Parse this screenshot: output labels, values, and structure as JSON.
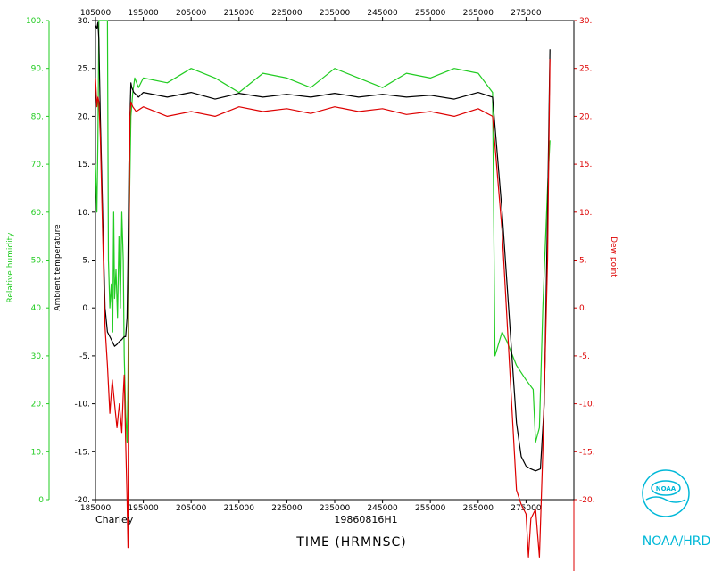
{
  "chart_data": {
    "type": "line",
    "storm_name": "Charley",
    "flight_id": "19860816H1",
    "xlabel": "TIME (HRMNSC)",
    "x_ticks": [
      "185000",
      "195000",
      "205000",
      "215000",
      "225000",
      "235000",
      "245000",
      "255000",
      "265000",
      "275000"
    ],
    "left_axis_1": {
      "label": "Relative humidity",
      "ticks": [
        "0",
        "10.",
        "20.",
        "30.",
        "40.",
        "50.",
        "60.",
        "70.",
        "80.",
        "90.",
        "100."
      ],
      "ylim": [
        0,
        100
      ],
      "color": "#22cc22"
    },
    "left_axis_2": {
      "label": "Ambient temperature",
      "ticks": [
        "-20.",
        "-15.",
        "-10.",
        "-5.",
        "0.",
        "5.",
        "10.",
        "15.",
        "20.",
        "25.",
        "30."
      ],
      "ylim": [
        -20,
        30
      ],
      "color": "#000000"
    },
    "right_axis": {
      "label": "Dew point",
      "ticks": [
        "-20.",
        "-15.",
        "-10.",
        "-5.",
        "0.",
        "5.",
        "10.",
        "15.",
        "20.",
        "25.",
        "30."
      ],
      "ylim": [
        -20,
        30
      ],
      "color": "#dd0000"
    },
    "series": [
      {
        "name": "Relative humidity",
        "axis": "left_axis_1",
        "color": "#22cc22",
        "points": [
          [
            0.0,
            70
          ],
          [
            0.03,
            60
          ],
          [
            0.05,
            75
          ],
          [
            0.07,
            100
          ],
          [
            0.2,
            100
          ],
          [
            0.25,
            100
          ],
          [
            0.27,
            50
          ],
          [
            0.3,
            40
          ],
          [
            0.33,
            45
          ],
          [
            0.36,
            35
          ],
          [
            0.38,
            60
          ],
          [
            0.4,
            42
          ],
          [
            0.43,
            48
          ],
          [
            0.46,
            38
          ],
          [
            0.49,
            55
          ],
          [
            0.52,
            40
          ],
          [
            0.55,
            60
          ],
          [
            0.58,
            50
          ],
          [
            0.6,
            30
          ],
          [
            0.63,
            18
          ],
          [
            0.66,
            12
          ],
          [
            0.68,
            25
          ],
          [
            0.7,
            55
          ],
          [
            0.74,
            80
          ],
          [
            0.78,
            85
          ],
          [
            0.82,
            88
          ],
          [
            0.86,
            87
          ],
          [
            0.9,
            86
          ],
          [
            1.0,
            88
          ],
          [
            1.5,
            87
          ],
          [
            2.0,
            90
          ],
          [
            2.5,
            88
          ],
          [
            3.0,
            85
          ],
          [
            3.5,
            89
          ],
          [
            4.0,
            88
          ],
          [
            4.5,
            86
          ],
          [
            5.0,
            90
          ],
          [
            5.5,
            88
          ],
          [
            6.0,
            86
          ],
          [
            6.5,
            89
          ],
          [
            7.0,
            88
          ],
          [
            7.5,
            90
          ],
          [
            8.0,
            89
          ],
          [
            8.3,
            85
          ],
          [
            8.35,
            30
          ],
          [
            8.5,
            35
          ],
          [
            8.6,
            33
          ],
          [
            8.8,
            28
          ],
          [
            9.0,
            25
          ],
          [
            9.15,
            23
          ],
          [
            9.2,
            12
          ],
          [
            9.28,
            15
          ],
          [
            9.35,
            40
          ],
          [
            9.45,
            65
          ],
          [
            9.5,
            75
          ]
        ]
      },
      {
        "name": "Ambient temperature",
        "axis": "left_axis_2",
        "color": "#000000",
        "points": [
          [
            0.0,
            29.5
          ],
          [
            0.03,
            29.2
          ],
          [
            0.05,
            29.8
          ],
          [
            0.07,
            28.0
          ],
          [
            0.1,
            20.0
          ],
          [
            0.15,
            10.0
          ],
          [
            0.2,
            0.0
          ],
          [
            0.25,
            -2.5
          ],
          [
            0.3,
            -3.0
          ],
          [
            0.35,
            -3.5
          ],
          [
            0.4,
            -4.0
          ],
          [
            0.45,
            -3.8
          ],
          [
            0.5,
            -3.5
          ],
          [
            0.55,
            -3.3
          ],
          [
            0.6,
            -3.0
          ],
          [
            0.63,
            -3.0
          ],
          [
            0.66,
            -1.0
          ],
          [
            0.68,
            5.0
          ],
          [
            0.7,
            15.0
          ],
          [
            0.72,
            20.0
          ],
          [
            0.74,
            23.5
          ],
          [
            0.76,
            23.0
          ],
          [
            0.8,
            22.5
          ],
          [
            0.9,
            22.0
          ],
          [
            1.0,
            22.5
          ],
          [
            1.5,
            22.0
          ],
          [
            2.0,
            22.5
          ],
          [
            2.5,
            21.8
          ],
          [
            3.0,
            22.4
          ],
          [
            3.5,
            22.0
          ],
          [
            4.0,
            22.3
          ],
          [
            4.5,
            22.0
          ],
          [
            5.0,
            22.4
          ],
          [
            5.5,
            22.0
          ],
          [
            6.0,
            22.3
          ],
          [
            6.5,
            22.0
          ],
          [
            7.0,
            22.2
          ],
          [
            7.5,
            21.8
          ],
          [
            8.0,
            22.5
          ],
          [
            8.3,
            22.0
          ],
          [
            8.5,
            10.0
          ],
          [
            8.8,
            -12.0
          ],
          [
            8.9,
            -15.5
          ],
          [
            9.0,
            -16.5
          ],
          [
            9.1,
            -16.8
          ],
          [
            9.2,
            -17.0
          ],
          [
            9.3,
            -16.8
          ],
          [
            9.38,
            -10.0
          ],
          [
            9.45,
            10.0
          ],
          [
            9.5,
            27.0
          ]
        ]
      },
      {
        "name": "Dew point",
        "axis": "right_axis",
        "color": "#dd0000",
        "points": [
          [
            0.0,
            24.0
          ],
          [
            0.03,
            21.0
          ],
          [
            0.05,
            22.0
          ],
          [
            0.07,
            21.5
          ],
          [
            0.1,
            18.0
          ],
          [
            0.15,
            8.0
          ],
          [
            0.2,
            -2.0
          ],
          [
            0.25,
            -6.0
          ],
          [
            0.3,
            -11.0
          ],
          [
            0.35,
            -7.5
          ],
          [
            0.4,
            -10.0
          ],
          [
            0.45,
            -12.5
          ],
          [
            0.5,
            -10.0
          ],
          [
            0.55,
            -13.0
          ],
          [
            0.58,
            -9.0
          ],
          [
            0.6,
            -7.0
          ],
          [
            0.63,
            -14.0
          ],
          [
            0.66,
            -20.0
          ],
          [
            0.68,
            -25.0
          ],
          [
            0.7,
            5.0
          ],
          [
            0.72,
            20.0
          ],
          [
            0.74,
            21.5
          ],
          [
            0.78,
            21.0
          ],
          [
            0.85,
            20.5
          ],
          [
            1.0,
            21.0
          ],
          [
            1.5,
            20.0
          ],
          [
            2.0,
            20.5
          ],
          [
            2.5,
            20.0
          ],
          [
            3.0,
            21.0
          ],
          [
            3.5,
            20.5
          ],
          [
            4.0,
            20.8
          ],
          [
            4.5,
            20.3
          ],
          [
            5.0,
            21.0
          ],
          [
            5.5,
            20.5
          ],
          [
            6.0,
            20.8
          ],
          [
            6.5,
            20.2
          ],
          [
            7.0,
            20.5
          ],
          [
            7.5,
            20.0
          ],
          [
            8.0,
            20.8
          ],
          [
            8.3,
            20.0
          ],
          [
            8.5,
            8.0
          ],
          [
            8.7,
            -10.0
          ],
          [
            8.8,
            -19.0
          ],
          [
            8.9,
            -20.5
          ],
          [
            9.0,
            -21.5
          ],
          [
            9.05,
            -26.0
          ],
          [
            9.1,
            -22.0
          ],
          [
            9.2,
            -21.0
          ],
          [
            9.28,
            -26.0
          ],
          [
            9.35,
            -15.0
          ],
          [
            9.45,
            5.0
          ],
          [
            9.5,
            26.0
          ]
        ]
      }
    ],
    "grid": false
  },
  "brand": {
    "logo_text": "NOAA",
    "label": "NOAA/HRD"
  }
}
